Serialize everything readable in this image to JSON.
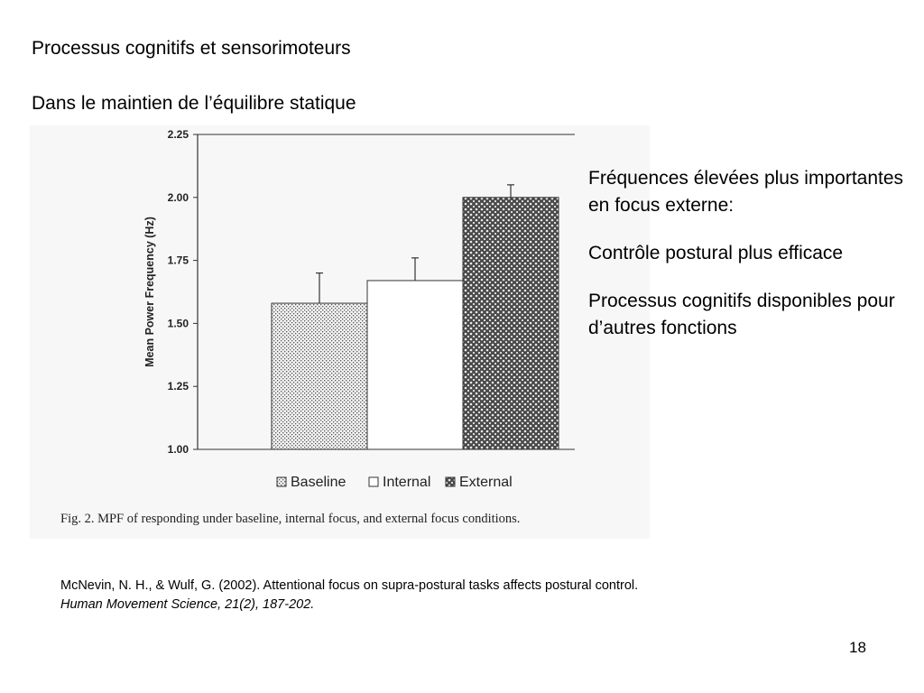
{
  "slide": {
    "title_line1": "Processus cognitifs et sensorimoteurs",
    "title_line2": "Dans le maintien de l’équilibre statique",
    "notes": [
      "Fréquences élevées plus importantes en focus externe:",
      "Contrôle postural plus efficace",
      "Processus cognitifs disponibles pour d’autres fonctions"
    ],
    "reference_line1": "McNevin, N. H., & Wulf, G. (2002). Attentional focus on supra-postural tasks affects postural control.",
    "reference_line2": "Human Movement Science, 21(2), 187-202.",
    "page_number": "18"
  },
  "chart_data": {
    "type": "bar",
    "title": "",
    "caption": "Fig. 2. MPF of responding under baseline, internal focus, and external focus conditions.",
    "xlabel": "",
    "ylabel": "Mean Power Frequency (Hz)",
    "ylim": [
      1.0,
      2.25
    ],
    "yticks": [
      "1.00",
      "1.25",
      "1.50",
      "1.75",
      "2.00",
      "2.25"
    ],
    "categories": [
      "Baseline",
      "Internal",
      "External"
    ],
    "values": [
      1.58,
      1.67,
      2.0
    ],
    "errors": [
      0.12,
      0.09,
      0.05
    ],
    "legend": [
      "Baseline",
      "Internal",
      "External"
    ],
    "legend_position": "bottom",
    "grid": false,
    "colors": {
      "baseline_fill": "#dadada",
      "internal_fill": "#ffffff",
      "external_fill": "#555555",
      "axis": "#333333"
    }
  }
}
